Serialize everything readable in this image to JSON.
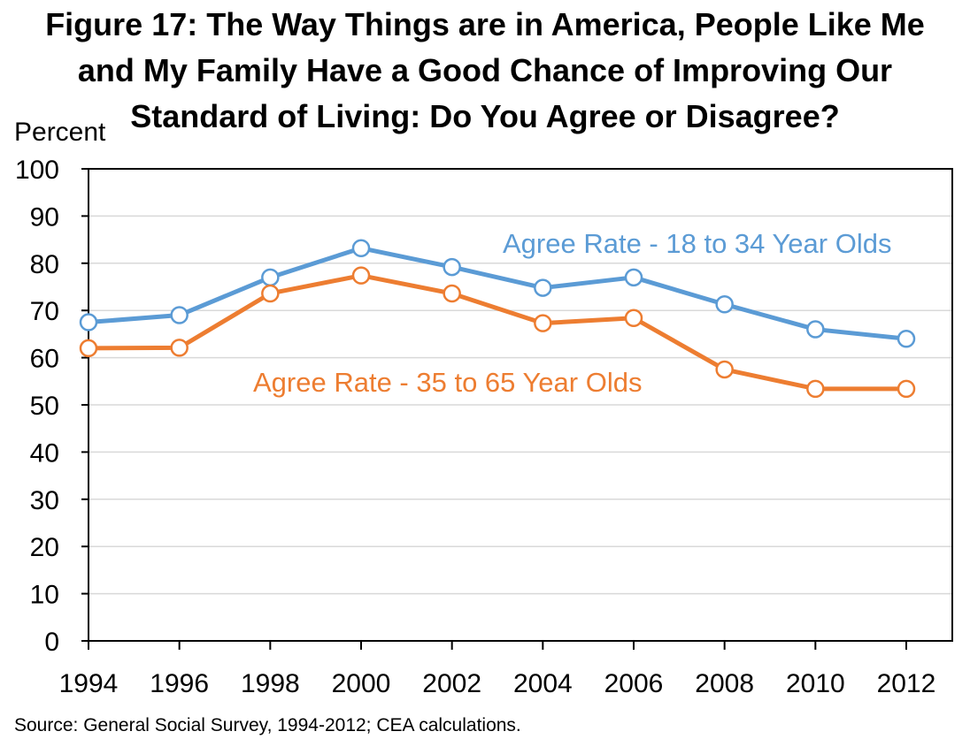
{
  "chart_data": {
    "type": "line",
    "title_lines": [
      "Figure 17: The Way Things are in America, People Like Me",
      "and My Family Have a Good Chance of Improving Our",
      "Standard of Living: Do You Agree or Disagree?"
    ],
    "ylabel": "Percent",
    "xlabel": "",
    "ylim": [
      0,
      100
    ],
    "yticks": [
      "0",
      "10",
      "20",
      "30",
      "40",
      "50",
      "60",
      "70",
      "80",
      "90",
      "100"
    ],
    "categories": [
      "1994",
      "1996",
      "1998",
      "2000",
      "2002",
      "2004",
      "2006",
      "2008",
      "2010",
      "2012"
    ],
    "grid": true,
    "series": [
      {
        "name": "Agree Rate - 18 to 34 Year Olds",
        "color": "#5B9BD5",
        "values": [
          67.5,
          69,
          77,
          83.2,
          79.2,
          74.8,
          77,
          71.3,
          66,
          64
        ]
      },
      {
        "name": "Agree Rate - 35 to 65 Year Olds",
        "color": "#ED7D31",
        "values": [
          62,
          62.1,
          73.6,
          77.4,
          73.6,
          67.3,
          68.4,
          57.5,
          53.4,
          53.4
        ]
      }
    ],
    "source": "Source: General Social Survey, 1994-2012; CEA calculations."
  }
}
